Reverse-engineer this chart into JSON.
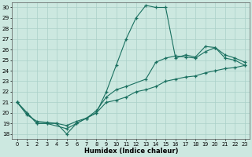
{
  "xlabel": "Humidex (Indice chaleur)",
  "bg_color": "#cce8e0",
  "grid_color": "#aad0c8",
  "line_color": "#1a7060",
  "xlim": [
    -0.5,
    23.5
  ],
  "ylim": [
    17.5,
    30.5
  ],
  "yticks": [
    18,
    19,
    20,
    21,
    22,
    23,
    24,
    25,
    26,
    27,
    28,
    29,
    30
  ],
  "xticks": [
    0,
    1,
    2,
    3,
    4,
    5,
    6,
    7,
    8,
    9,
    10,
    11,
    12,
    13,
    14,
    15,
    16,
    17,
    18,
    19,
    20,
    21,
    22,
    23
  ],
  "series1": {
    "x": [
      0,
      1,
      2,
      3,
      4,
      5,
      6,
      7,
      8,
      9,
      10,
      11,
      12,
      13,
      14,
      15,
      16,
      17,
      18,
      19,
      20,
      21,
      22,
      23
    ],
    "y": [
      21,
      20,
      19,
      19,
      19,
      18,
      19,
      19.5,
      20,
      22,
      24.5,
      27,
      29,
      30.2,
      30,
      30,
      25.2,
      25.5,
      25.3,
      26.3,
      26.2,
      25.2,
      25.0,
      24.5
    ]
  },
  "series2": {
    "x": [
      0,
      1,
      2,
      3,
      5,
      6,
      7,
      8,
      9,
      10,
      11,
      13,
      14,
      15,
      16,
      17,
      18,
      19,
      20,
      21,
      22,
      23
    ],
    "y": [
      21,
      20,
      19,
      19,
      18.5,
      19,
      19.5,
      20.2,
      21.5,
      22.2,
      22.5,
      23.2,
      24.8,
      25.2,
      25.4,
      25.3,
      25.2,
      25.8,
      26.2,
      25.5,
      25.2,
      24.8
    ]
  },
  "series3": {
    "x": [
      0,
      1,
      2,
      3,
      4,
      5,
      6,
      7,
      8,
      9,
      10,
      11,
      12,
      13,
      14,
      15,
      16,
      17,
      18,
      19,
      20,
      21,
      22,
      23
    ],
    "y": [
      21,
      19.8,
      19.2,
      19.1,
      19.0,
      18.8,
      19.2,
      19.5,
      20.0,
      21.0,
      21.2,
      21.5,
      22.0,
      22.2,
      22.5,
      23.0,
      23.2,
      23.4,
      23.5,
      23.8,
      24.0,
      24.2,
      24.3,
      24.5
    ]
  }
}
